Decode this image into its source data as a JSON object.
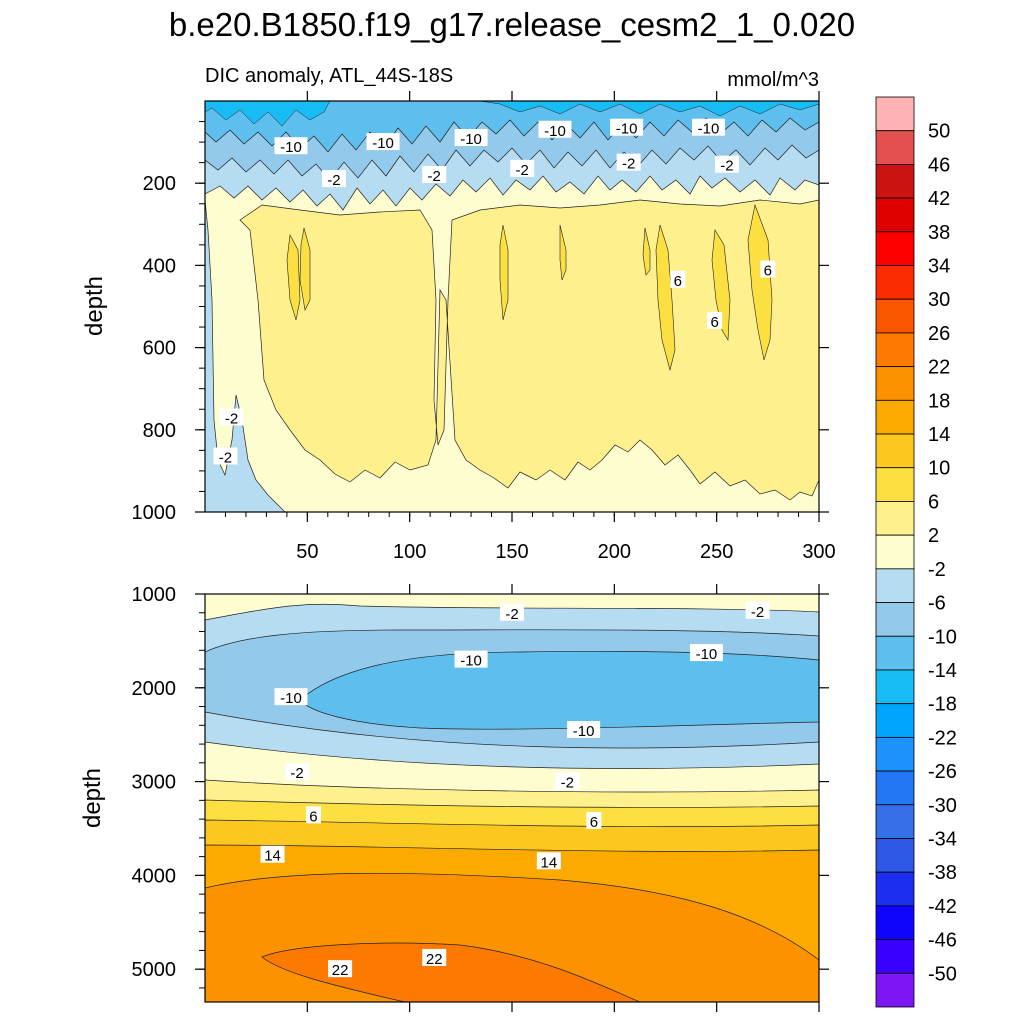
{
  "chart_data": {
    "type": "contour",
    "title": "b.e20.B1850.f19_g17.release_cesm2_1_0.020",
    "subtitle": "DIC anomaly, ATL_44S-18S",
    "units": "mmol/m^3",
    "ylabel": "depth",
    "colorbar": {
      "labels": [
        "50",
        "46",
        "42",
        "38",
        "34",
        "30",
        "26",
        "22",
        "18",
        "14",
        "10",
        "6",
        "2",
        "-2",
        "-6",
        "-10",
        "-14",
        "-18",
        "-22",
        "-26",
        "-30",
        "-34",
        "-38",
        "-42",
        "-46",
        "-50"
      ],
      "colors": [
        "#ffb3b3",
        "#e3504f",
        "#cc1313",
        "#df0000",
        "#fc0000",
        "#fc2a00",
        "#fc5500",
        "#fc7a00",
        "#fc9200",
        "#fcaa00",
        "#fcc71e",
        "#fce042",
        "#fdf08d",
        "#fefdd0",
        "#b5dcf1",
        "#93c9ea",
        "#5ebfee",
        "#18bcf5",
        "#00a6fc",
        "#1d91fc",
        "#2477f4",
        "#3570e8",
        "#2e58e8",
        "#1c2ef0",
        "#0f05ff",
        "#3a00ff",
        "#7d16f2"
      ]
    },
    "panels": [
      {
        "name": "upper",
        "xlim": [
          0,
          300
        ],
        "ylim": [
          1000,
          0
        ],
        "xticks": [
          "50",
          "100",
          "150",
          "200",
          "250",
          "300"
        ],
        "yticks": [
          "200",
          "400",
          "600",
          "800",
          "1000"
        ],
        "contour_labels": [
          {
            "text": "-10",
            "x": 42,
            "y": 110
          },
          {
            "text": "-10",
            "x": 87,
            "y": 100
          },
          {
            "text": "-10",
            "x": 130,
            "y": 90
          },
          {
            "text": "-10",
            "x": 171,
            "y": 70
          },
          {
            "text": "-10",
            "x": 206,
            "y": 65
          },
          {
            "text": "-10",
            "x": 246,
            "y": 65
          },
          {
            "text": "-2",
            "x": 63,
            "y": 190
          },
          {
            "text": "-2",
            "x": 112,
            "y": 180
          },
          {
            "text": "-2",
            "x": 155,
            "y": 165
          },
          {
            "text": "-2",
            "x": 207,
            "y": 150
          },
          {
            "text": "-2",
            "x": 255,
            "y": 155
          },
          {
            "text": "6",
            "x": 231,
            "y": 435
          },
          {
            "text": "6",
            "x": 249,
            "y": 535
          },
          {
            "text": "6",
            "x": 275,
            "y": 410
          },
          {
            "text": "-2",
            "x": 13,
            "y": 770
          },
          {
            "text": "-2",
            "x": 10,
            "y": 865
          }
        ]
      },
      {
        "name": "lower",
        "xlim": [
          0,
          300
        ],
        "ylim": [
          5350,
          1000
        ],
        "yticks": [
          "1000",
          "2000",
          "3000",
          "4000",
          "5000"
        ],
        "contour_labels": [
          {
            "text": "-2",
            "x": 150,
            "y": 1200
          },
          {
            "text": "-2",
            "x": 270,
            "y": 1180
          },
          {
            "text": "-10",
            "x": 130,
            "y": 1700
          },
          {
            "text": "-10",
            "x": 245,
            "y": 1630
          },
          {
            "text": "-10",
            "x": 42,
            "y": 2100
          },
          {
            "text": "-10",
            "x": 185,
            "y": 2450
          },
          {
            "text": "-2",
            "x": 45,
            "y": 2900
          },
          {
            "text": "-2",
            "x": 177,
            "y": 3000
          },
          {
            "text": "6",
            "x": 53,
            "y": 3360
          },
          {
            "text": "6",
            "x": 190,
            "y": 3420
          },
          {
            "text": "14",
            "x": 33,
            "y": 3780
          },
          {
            "text": "14",
            "x": 168,
            "y": 3850
          },
          {
            "text": "22",
            "x": 112,
            "y": 4880
          },
          {
            "text": "22",
            "x": 66,
            "y": 5000
          }
        ]
      }
    ]
  }
}
